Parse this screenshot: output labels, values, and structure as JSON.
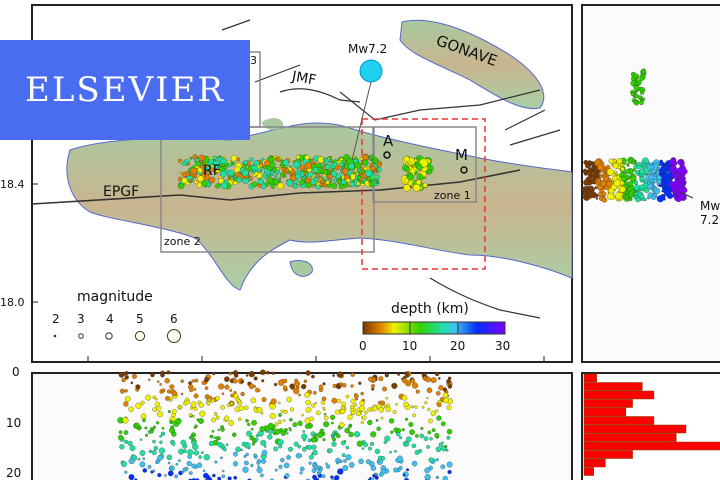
{
  "publisher_banner": "ELSEVIER",
  "map": {
    "labels": {
      "gonave": "GONAVE",
      "jmf": "JMF",
      "rf": "RF",
      "epgf": "EPGF",
      "zone1": "zone 1",
      "zone2": "zone 2",
      "zone3": "3",
      "station_a": "A",
      "station_m": "M",
      "mainshock": "Mw7.2"
    },
    "lat_ticks": [
      "18.4",
      "18.0"
    ],
    "magnitude_legend": {
      "title": "magnitude",
      "values": [
        "2",
        "3",
        "4",
        "5",
        "6"
      ]
    },
    "depth_legend": {
      "title": "depth  (km)",
      "ticks": [
        "0",
        "10",
        "20",
        "30"
      ],
      "colors": [
        "#7a3b00",
        "#e08000",
        "#f0f000",
        "#30d000",
        "#20e0a0",
        "#40c0f0",
        "#0030ff",
        "#8000ff"
      ]
    }
  },
  "cross_section": {
    "depth_ticks": [
      "0",
      "10",
      "20"
    ]
  },
  "side_panel": {
    "mainshock_label_line1": "Mw",
    "mainshock_label_line2": "7.2"
  },
  "histogram": {
    "bar_color": "#ff0000",
    "values": [
      13,
      60,
      72,
      50,
      43,
      72,
      105,
      95,
      140,
      50,
      22,
      10
    ]
  }
}
